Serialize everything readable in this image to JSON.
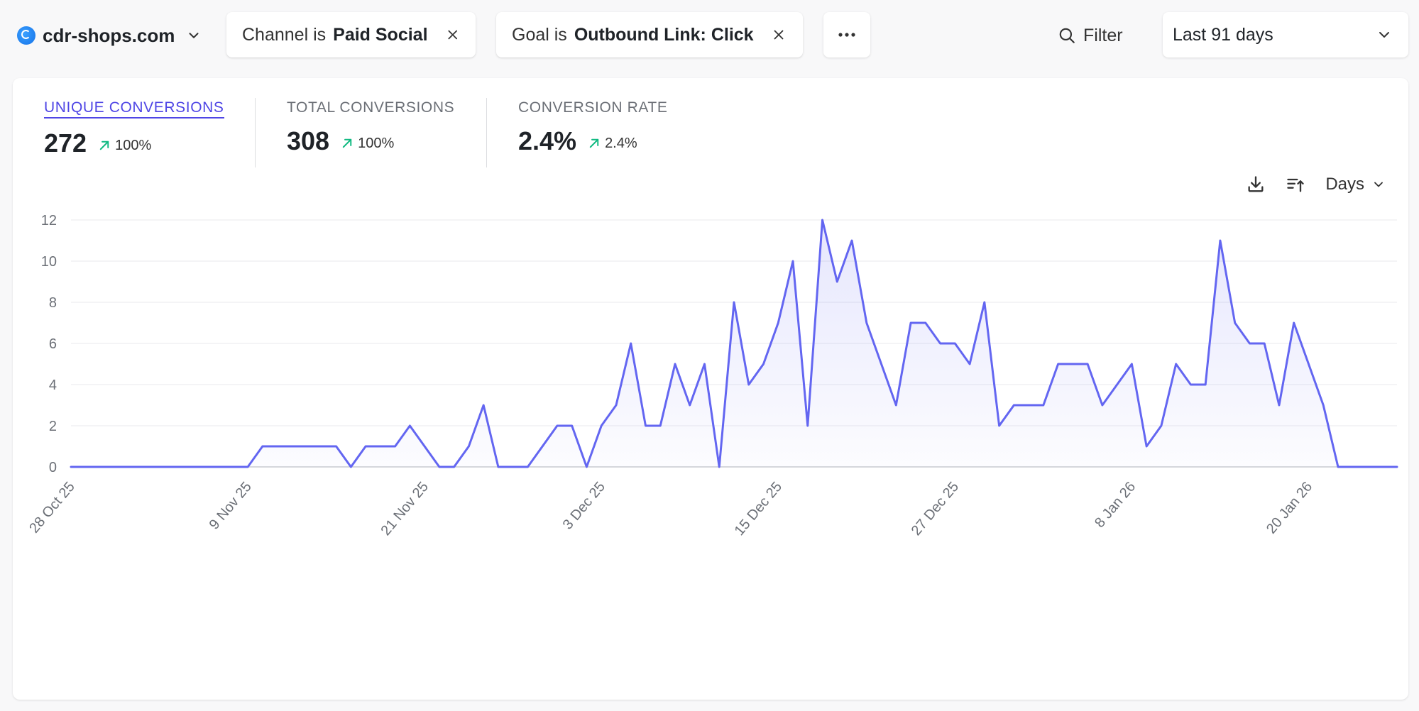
{
  "site": {
    "name": "cdr-shops.com",
    "favicon_icon": "globe-icon",
    "menu_icon": "chevron-down-icon"
  },
  "filters": [
    {
      "prefix": "Channel is",
      "value": "Paid Social",
      "remove_icon": "close-icon"
    },
    {
      "prefix": "Goal is",
      "value": "Outbound Link: Click",
      "remove_icon": "close-icon"
    }
  ],
  "more_filters": {
    "icon": "ellipsis-icon"
  },
  "filter_button": {
    "label": "Filter",
    "icon": "search-icon"
  },
  "period": {
    "label": "Last 91 days",
    "icon": "chevron-down-icon"
  },
  "metrics": [
    {
      "label": "UNIQUE CONVERSIONS",
      "value": "272",
      "change": "100%",
      "active": true
    },
    {
      "label": "TOTAL CONVERSIONS",
      "value": "308",
      "change": "100%",
      "active": false
    },
    {
      "label": "CONVERSION RATE",
      "value": "2.4%",
      "change": "2.4%",
      "active": false
    }
  ],
  "colors": {
    "accent": "#6366f1",
    "accent_dark": "#4f46e5",
    "positive": "#10b981",
    "grid": "#e9eaed",
    "axis_text": "#6b6f76"
  },
  "chart_tools": {
    "download_icon": "download-icon",
    "sort_icon": "sort-icon",
    "interval_label": "Days"
  },
  "chart_data": {
    "type": "area",
    "series": [
      {
        "name": "Unique conversions",
        "values": [
          0,
          0,
          0,
          0,
          0,
          0,
          0,
          0,
          0,
          0,
          0,
          0,
          0,
          1,
          1,
          1,
          1,
          1,
          1,
          0,
          1,
          1,
          1,
          2,
          1,
          0,
          0,
          1,
          3,
          0,
          0,
          0,
          1,
          2,
          2,
          0,
          2,
          3,
          6,
          2,
          2,
          5,
          3,
          5,
          0,
          8,
          4,
          5,
          7,
          10,
          2,
          12,
          9,
          11,
          7,
          5,
          3,
          7,
          7,
          6,
          6,
          5,
          8,
          2,
          3,
          3,
          3,
          5,
          5,
          5,
          3,
          4,
          5,
          1,
          2,
          5,
          4,
          4,
          11,
          7,
          6,
          6,
          3,
          7,
          5,
          3,
          0,
          0,
          0,
          0,
          0
        ]
      }
    ],
    "x_tick_labels": [
      "28 Oct 25",
      "9 Nov 25",
      "21 Nov 25",
      "3 Dec 25",
      "15 Dec 25",
      "27 Dec 25",
      "8 Jan 26",
      "20 Jan 26"
    ],
    "x_tick_indices": [
      0,
      12,
      24,
      36,
      48,
      60,
      72,
      84
    ],
    "y_ticks": [
      0,
      2,
      4,
      6,
      8,
      10,
      12
    ],
    "ylim": [
      0,
      12
    ],
    "title": "",
    "xlabel": "",
    "ylabel": "",
    "grid": true
  }
}
